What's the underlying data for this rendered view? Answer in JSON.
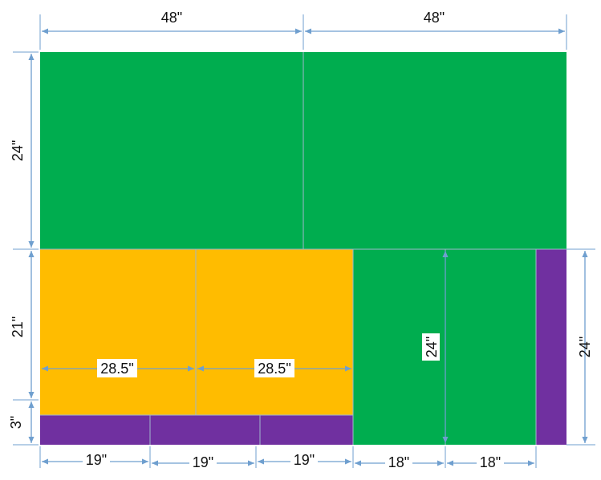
{
  "colors": {
    "green": "#00ad4f",
    "orange": "#ffbc00",
    "purple": "#7030a0",
    "dimension_line": "#6f9fcf",
    "background": "#ffffff"
  },
  "pieces": {
    "top_left": "green",
    "top_right": "green",
    "mid_left": "orange",
    "mid_center": "orange",
    "bottom_strip_1": "purple",
    "bottom_strip_2": "purple",
    "bottom_strip_3": "purple",
    "right_left": "green",
    "right_middle": "green",
    "right_strip": "purple"
  },
  "dimensions": {
    "top_left_width": "48\"",
    "top_right_width": "48\"",
    "top_height": "24\"",
    "mid_height": "21\"",
    "strip_height": "3\"",
    "right_height": "24\"",
    "orange_left_width": "28.5\"",
    "orange_right_width": "28.5\"",
    "green_inner_height": "24\"",
    "bottom_1": "19\"",
    "bottom_2": "19\"",
    "bottom_3": "19\"",
    "bottom_4": "18\"",
    "bottom_5": "18\""
  }
}
